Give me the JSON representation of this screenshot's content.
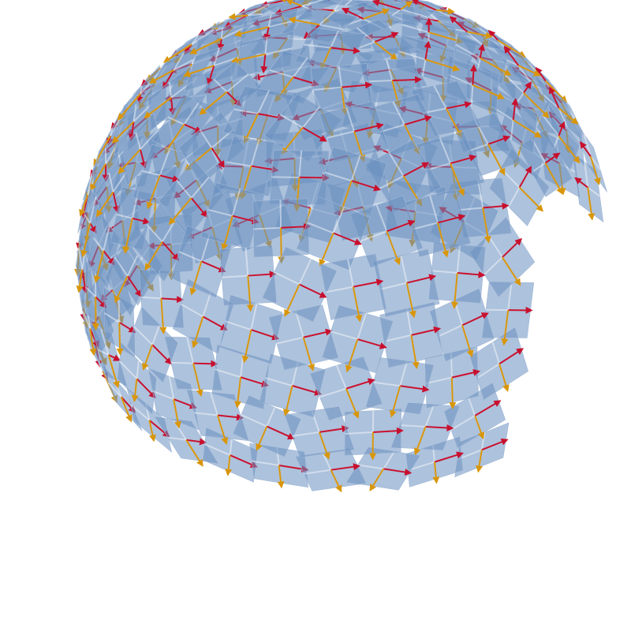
{
  "figure": {
    "subject": "orthonormal-frame-field-on-hemisphere",
    "tiles": {
      "count_estimate": 200,
      "fill_color": "#6a8fbf",
      "fill_opacity": 0.55,
      "grid_line_color": "#ffffff",
      "subdivisions": 2
    },
    "vectors": {
      "first_axis": {
        "color": "#c8102e",
        "name": "red-arrow"
      },
      "second_axis": {
        "color": "#d8960c",
        "name": "orange-arrow"
      }
    }
  }
}
